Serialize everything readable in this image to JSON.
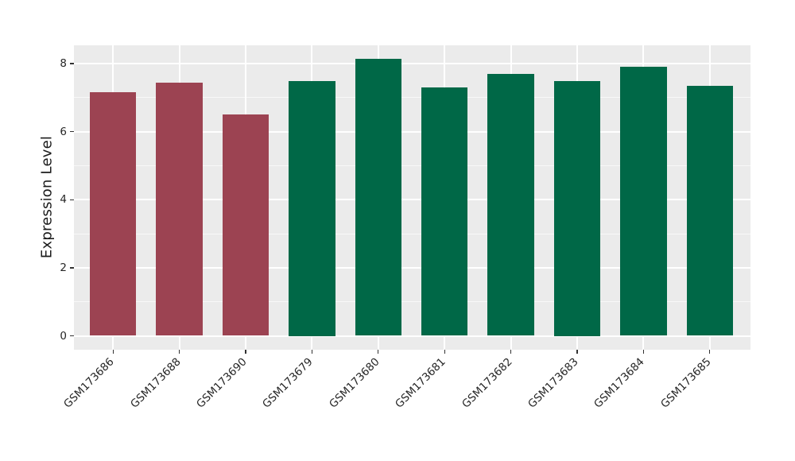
{
  "chart_data": {
    "type": "bar",
    "title": "",
    "xlabel": "",
    "ylabel": "Expression Level",
    "categories": [
      "GSM173686",
      "GSM173688",
      "GSM173690",
      "GSM173679",
      "GSM173680",
      "GSM173681",
      "GSM173682",
      "GSM173683",
      "GSM173684",
      "GSM173685"
    ],
    "values": [
      7.15,
      7.45,
      6.5,
      7.5,
      8.15,
      7.3,
      7.7,
      7.5,
      7.9,
      7.35
    ],
    "bar_colors": [
      "#9c4352",
      "#9c4352",
      "#9c4352",
      "#006847",
      "#006847",
      "#006847",
      "#006847",
      "#006847",
      "#006847",
      "#006847"
    ],
    "yticks": [
      0,
      2,
      4,
      6,
      8
    ],
    "minor_yticks": [
      1,
      3,
      5,
      7
    ],
    "ylim": [
      -0.4,
      8.55
    ],
    "grid": true,
    "legend": "none",
    "x_tick_rotation_deg": 45,
    "colors": {
      "red_group_bar": "#9c4352",
      "green_group_bar": "#006847",
      "panel_background": "#ebebeb",
      "gridline": "#ffffff",
      "figure_background": "#ffffff"
    }
  }
}
